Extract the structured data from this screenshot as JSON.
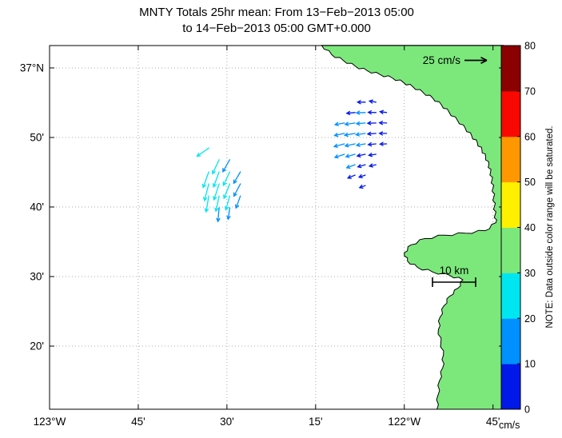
{
  "title": {
    "line1": "MNTY Totals 25hr mean: From 13−Feb−2013 05:00",
    "line2": "to 14−Feb−2013 05:00 GMT+0.000"
  },
  "chart_data": {
    "type": "vector_field_map",
    "title": "MNTY Totals 25hr mean: From 13−Feb−2013 05:00 to 14−Feb−2013 05:00 GMT+0.000",
    "axes": {
      "lon_range": [
        -123.0,
        -121.72
      ],
      "lat_range": [
        36.182,
        37.0536
      ],
      "xticks": {
        "values": [
          -123.0,
          -122.75,
          -122.5,
          -122.25,
          -122.0,
          -121.75
        ],
        "labels": [
          "123°W",
          "45'",
          "30'",
          "15'",
          "122°W",
          "45'"
        ]
      },
      "yticks": {
        "values": [
          37.0,
          36.8333,
          36.6667,
          36.5,
          36.3333
        ],
        "labels": [
          "37°N",
          "50'",
          "40'",
          "30'",
          "20'"
        ]
      },
      "grid": true
    },
    "colorbar": {
      "units": "cm/s",
      "range": [
        0,
        80
      ],
      "ticks": [
        0,
        10,
        20,
        30,
        40,
        50,
        60,
        70,
        80
      ],
      "colors": [
        "#0018E8",
        "#0090FF",
        "#00E6F0",
        "#7CE87C",
        "#FFF000",
        "#FF9800",
        "#F80800",
        "#8B0000"
      ],
      "note": "NOTE: Data outside color range will be saturated."
    },
    "annotations": {
      "reference_arrow": {
        "label": "25 cm/s",
        "speed_cm_s": 25
      },
      "scale_bar": {
        "label": "10 km",
        "length_km": 10
      }
    },
    "map": {
      "land_color": "#7CE87C",
      "coastline": [
        [
          -122.233,
          37.054
        ],
        [
          -122.205,
          37.032
        ],
        [
          -122.172,
          37.018
        ],
        [
          -122.138,
          37.004
        ],
        [
          -122.104,
          36.993
        ],
        [
          -122.068,
          36.984
        ],
        [
          -122.034,
          36.976
        ],
        [
          -122.002,
          36.965
        ],
        [
          -121.976,
          36.955
        ],
        [
          -121.947,
          36.941
        ],
        [
          -121.92,
          36.928
        ],
        [
          -121.895,
          36.911
        ],
        [
          -121.874,
          36.894
        ],
        [
          -121.85,
          36.874
        ],
        [
          -121.828,
          36.855
        ],
        [
          -121.81,
          36.837
        ],
        [
          -121.794,
          36.82
        ],
        [
          -121.781,
          36.803
        ],
        [
          -121.771,
          36.787
        ],
        [
          -121.762,
          36.768
        ],
        [
          -121.757,
          36.75
        ],
        [
          -121.753,
          36.731
        ],
        [
          -121.75,
          36.712
        ],
        [
          -121.748,
          36.69
        ],
        [
          -121.746,
          36.668
        ],
        [
          -121.744,
          36.648
        ],
        [
          -121.742,
          36.629
        ],
        [
          -121.772,
          36.61
        ],
        [
          -121.828,
          36.604
        ],
        [
          -121.885,
          36.599
        ],
        [
          -121.942,
          36.591
        ],
        [
          -121.981,
          36.576
        ],
        [
          -122.0,
          36.557
        ],
        [
          -121.991,
          36.537
        ],
        [
          -121.963,
          36.522
        ],
        [
          -121.92,
          36.511
        ],
        [
          -121.872,
          36.503
        ],
        [
          -121.835,
          36.492
        ],
        [
          -121.849,
          36.472
        ],
        [
          -121.872,
          36.453
        ],
        [
          -121.888,
          36.43
        ],
        [
          -121.899,
          36.403
        ],
        [
          -121.904,
          36.373
        ],
        [
          -121.897,
          36.342
        ],
        [
          -121.89,
          36.311
        ],
        [
          -121.892,
          36.281
        ],
        [
          -121.901,
          36.25
        ],
        [
          -121.905,
          36.216
        ],
        [
          -121.908,
          36.182
        ],
        [
          -121.72,
          36.182
        ],
        [
          -121.72,
          37.054
        ]
      ]
    },
    "vectors": [
      {
        "lon": -122.551,
        "lat": 36.808,
        "spd": 20,
        "dir": 235
      },
      {
        "lon": -122.522,
        "lat": 36.78,
        "spd": 22,
        "dir": 205
      },
      {
        "lon": -122.492,
        "lat": 36.78,
        "spd": 19,
        "dir": 210
      },
      {
        "lon": -122.551,
        "lat": 36.751,
        "spd": 24,
        "dir": 200
      },
      {
        "lon": -122.522,
        "lat": 36.751,
        "spd": 23,
        "dir": 200
      },
      {
        "lon": -122.492,
        "lat": 36.751,
        "spd": 21,
        "dir": 205
      },
      {
        "lon": -122.462,
        "lat": 36.751,
        "spd": 18,
        "dir": 210
      },
      {
        "lon": -122.551,
        "lat": 36.722,
        "spd": 25,
        "dir": 195
      },
      {
        "lon": -122.522,
        "lat": 36.722,
        "spd": 24,
        "dir": 198
      },
      {
        "lon": -122.492,
        "lat": 36.722,
        "spd": 22,
        "dir": 202
      },
      {
        "lon": -122.462,
        "lat": 36.722,
        "spd": 19,
        "dir": 208
      },
      {
        "lon": -122.551,
        "lat": 36.693,
        "spd": 23,
        "dir": 190
      },
      {
        "lon": -122.522,
        "lat": 36.693,
        "spd": 22,
        "dir": 192
      },
      {
        "lon": -122.492,
        "lat": 36.693,
        "spd": 20,
        "dir": 196
      },
      {
        "lon": -122.462,
        "lat": 36.693,
        "spd": 17,
        "dir": 200
      },
      {
        "lon": -122.522,
        "lat": 36.665,
        "spd": 19,
        "dir": 185
      },
      {
        "lon": -122.492,
        "lat": 36.665,
        "spd": 15,
        "dir": 188
      },
      {
        "lon": -122.11,
        "lat": 36.918,
        "spd": 8,
        "dir": 270
      },
      {
        "lon": -122.08,
        "lat": 36.918,
        "spd": 6,
        "dir": 280
      },
      {
        "lon": -122.139,
        "lat": 36.893,
        "spd": 9,
        "dir": 265
      },
      {
        "lon": -122.11,
        "lat": 36.893,
        "spd": 10,
        "dir": 268
      },
      {
        "lon": -122.08,
        "lat": 36.893,
        "spd": 8,
        "dir": 272
      },
      {
        "lon": -122.05,
        "lat": 36.893,
        "spd": 6,
        "dir": 278
      },
      {
        "lon": -122.169,
        "lat": 36.868,
        "spd": 11,
        "dir": 260
      },
      {
        "lon": -122.139,
        "lat": 36.868,
        "spd": 12,
        "dir": 262
      },
      {
        "lon": -122.11,
        "lat": 36.868,
        "spd": 10,
        "dir": 265
      },
      {
        "lon": -122.08,
        "lat": 36.868,
        "spd": 9,
        "dir": 268
      },
      {
        "lon": -122.05,
        "lat": 36.868,
        "spd": 7,
        "dir": 272
      },
      {
        "lon": -122.169,
        "lat": 36.843,
        "spd": 12,
        "dir": 258
      },
      {
        "lon": -122.139,
        "lat": 36.843,
        "spd": 13,
        "dir": 260
      },
      {
        "lon": -122.11,
        "lat": 36.843,
        "spd": 11,
        "dir": 262
      },
      {
        "lon": -122.08,
        "lat": 36.843,
        "spd": 9,
        "dir": 266
      },
      {
        "lon": -122.05,
        "lat": 36.843,
        "spd": 7,
        "dir": 270
      },
      {
        "lon": -122.169,
        "lat": 36.818,
        "spd": 13,
        "dir": 255
      },
      {
        "lon": -122.139,
        "lat": 36.818,
        "spd": 12,
        "dir": 258
      },
      {
        "lon": -122.11,
        "lat": 36.818,
        "spd": 10,
        "dir": 260
      },
      {
        "lon": -122.08,
        "lat": 36.818,
        "spd": 8,
        "dir": 264
      },
      {
        "lon": -122.05,
        "lat": 36.818,
        "spd": 6,
        "dir": 268
      },
      {
        "lon": -122.169,
        "lat": 36.793,
        "spd": 12,
        "dir": 252
      },
      {
        "lon": -122.139,
        "lat": 36.793,
        "spd": 11,
        "dir": 255
      },
      {
        "lon": -122.11,
        "lat": 36.793,
        "spd": 9,
        "dir": 258
      },
      {
        "lon": -122.08,
        "lat": 36.793,
        "spd": 7,
        "dir": 262
      },
      {
        "lon": -122.139,
        "lat": 36.768,
        "spd": 10,
        "dir": 250
      },
      {
        "lon": -122.11,
        "lat": 36.768,
        "spd": 8,
        "dir": 254
      },
      {
        "lon": -122.08,
        "lat": 36.768,
        "spd": 6,
        "dir": 258
      },
      {
        "lon": -122.139,
        "lat": 36.743,
        "spd": 8,
        "dir": 248
      },
      {
        "lon": -122.11,
        "lat": 36.743,
        "spd": 6,
        "dir": 252
      },
      {
        "lon": -122.11,
        "lat": 36.718,
        "spd": 5,
        "dir": 250
      }
    ]
  }
}
